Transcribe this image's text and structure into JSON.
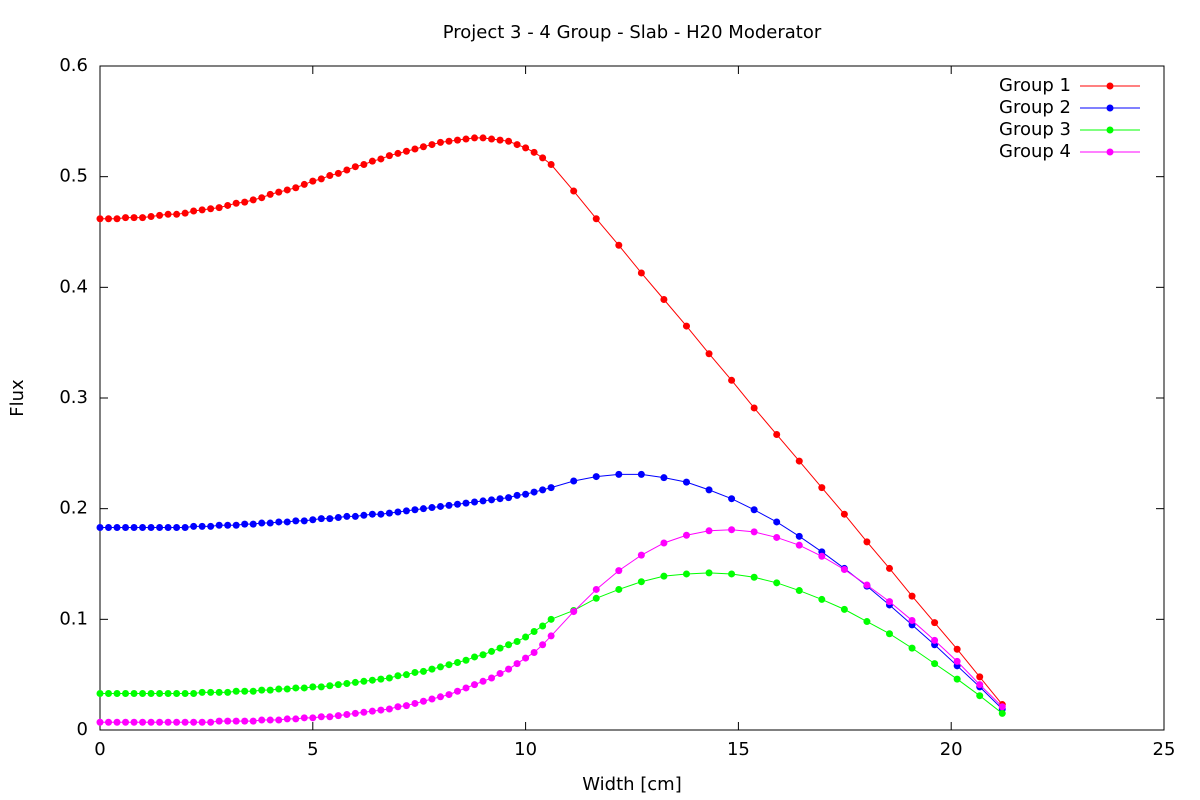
{
  "chart_data": {
    "type": "line",
    "title": "Project 3 - 4 Group - Slab - H20 Moderator",
    "x_label": "Width [cm]",
    "y_label": "Flux",
    "xlim": [
      0,
      25
    ],
    "xticks": [
      0,
      5,
      10,
      15,
      20,
      25
    ],
    "ylim": [
      0,
      0.6
    ],
    "yticks": [
      0,
      0.1,
      0.2,
      0.3,
      0.4,
      0.5,
      0.6
    ],
    "legend": "upper right",
    "x": [
      0,
      0.2,
      0.4,
      0.6,
      0.8,
      1.0,
      1.2,
      1.4,
      1.6,
      1.8,
      2.0,
      2.2,
      2.4,
      2.6,
      2.8,
      3.0,
      3.2,
      3.4,
      3.6,
      3.8,
      4.0,
      4.2,
      4.4,
      4.6,
      4.8,
      5.0,
      5.2,
      5.4,
      5.6,
      5.8,
      6.0,
      6.2,
      6.4,
      6.6,
      6.8,
      7.0,
      7.2,
      7.4,
      7.6,
      7.8,
      8.0,
      8.2,
      8.4,
      8.6,
      8.8,
      9.0,
      9.2,
      9.4,
      9.6,
      9.8,
      10.0,
      10.2,
      10.4,
      10.6,
      11.13,
      11.66,
      12.19,
      12.72,
      13.25,
      13.78,
      14.31,
      14.84,
      15.37,
      15.9,
      16.43,
      16.96,
      17.49,
      18.02,
      18.55,
      19.08,
      19.61,
      20.14,
      20.67,
      21.2
    ],
    "series": [
      {
        "name": "Group 1",
        "color": "#ff0000",
        "values": [
          0.462,
          0.462,
          0.462,
          0.463,
          0.463,
          0.463,
          0.464,
          0.465,
          0.466,
          0.466,
          0.467,
          0.469,
          0.47,
          0.471,
          0.472,
          0.474,
          0.476,
          0.477,
          0.479,
          0.481,
          0.484,
          0.486,
          0.488,
          0.49,
          0.493,
          0.496,
          0.498,
          0.501,
          0.503,
          0.506,
          0.509,
          0.511,
          0.514,
          0.516,
          0.519,
          0.521,
          0.523,
          0.525,
          0.527,
          0.529,
          0.531,
          0.532,
          0.533,
          0.534,
          0.535,
          0.535,
          0.534,
          0.533,
          0.532,
          0.529,
          0.526,
          0.522,
          0.517,
          0.511,
          0.487,
          0.462,
          0.438,
          0.413,
          0.389,
          0.365,
          0.34,
          0.316,
          0.291,
          0.267,
          0.243,
          0.219,
          0.195,
          0.17,
          0.146,
          0.121,
          0.097,
          0.073,
          0.048,
          0.023
        ]
      },
      {
        "name": "Group 2",
        "color": "#0000ff",
        "values": [
          0.183,
          0.183,
          0.183,
          0.183,
          0.183,
          0.183,
          0.183,
          0.183,
          0.183,
          0.183,
          0.183,
          0.184,
          0.184,
          0.184,
          0.185,
          0.185,
          0.185,
          0.186,
          0.186,
          0.187,
          0.187,
          0.188,
          0.188,
          0.189,
          0.189,
          0.19,
          0.191,
          0.191,
          0.192,
          0.193,
          0.193,
          0.194,
          0.195,
          0.195,
          0.196,
          0.197,
          0.198,
          0.199,
          0.2,
          0.201,
          0.202,
          0.203,
          0.204,
          0.205,
          0.206,
          0.207,
          0.208,
          0.209,
          0.21,
          0.212,
          0.213,
          0.215,
          0.217,
          0.219,
          0.225,
          0.229,
          0.231,
          0.231,
          0.228,
          0.224,
          0.217,
          0.209,
          0.199,
          0.188,
          0.175,
          0.161,
          0.146,
          0.13,
          0.113,
          0.095,
          0.077,
          0.058,
          0.039,
          0.019
        ]
      },
      {
        "name": "Group 3",
        "color": "#00ff00",
        "values": [
          0.033,
          0.033,
          0.033,
          0.033,
          0.033,
          0.033,
          0.033,
          0.033,
          0.033,
          0.033,
          0.033,
          0.033,
          0.034,
          0.034,
          0.034,
          0.034,
          0.035,
          0.035,
          0.035,
          0.036,
          0.036,
          0.037,
          0.037,
          0.038,
          0.038,
          0.039,
          0.039,
          0.04,
          0.041,
          0.042,
          0.043,
          0.044,
          0.045,
          0.046,
          0.047,
          0.049,
          0.05,
          0.052,
          0.053,
          0.055,
          0.057,
          0.059,
          0.061,
          0.063,
          0.066,
          0.068,
          0.071,
          0.074,
          0.077,
          0.08,
          0.084,
          0.089,
          0.094,
          0.1,
          0.108,
          0.119,
          0.127,
          0.134,
          0.139,
          0.141,
          0.142,
          0.141,
          0.138,
          0.133,
          0.126,
          0.118,
          0.109,
          0.098,
          0.087,
          0.074,
          0.06,
          0.046,
          0.031,
          0.015
        ]
      },
      {
        "name": "Group 4",
        "color": "#ff00ff",
        "values": [
          0.007,
          0.007,
          0.007,
          0.007,
          0.007,
          0.007,
          0.007,
          0.007,
          0.007,
          0.007,
          0.007,
          0.007,
          0.007,
          0.007,
          0.008,
          0.008,
          0.008,
          0.008,
          0.008,
          0.009,
          0.009,
          0.009,
          0.01,
          0.01,
          0.011,
          0.011,
          0.012,
          0.012,
          0.013,
          0.014,
          0.015,
          0.016,
          0.017,
          0.018,
          0.019,
          0.021,
          0.022,
          0.024,
          0.026,
          0.028,
          0.03,
          0.032,
          0.035,
          0.038,
          0.041,
          0.044,
          0.047,
          0.051,
          0.055,
          0.06,
          0.065,
          0.07,
          0.077,
          0.085,
          0.107,
          0.127,
          0.144,
          0.158,
          0.169,
          0.176,
          0.18,
          0.181,
          0.179,
          0.174,
          0.167,
          0.157,
          0.145,
          0.131,
          0.116,
          0.099,
          0.081,
          0.062,
          0.041,
          0.021
        ]
      }
    ]
  }
}
